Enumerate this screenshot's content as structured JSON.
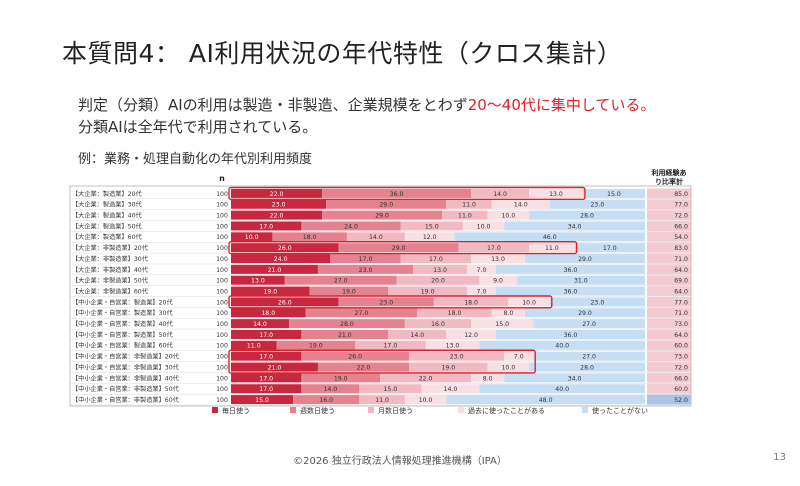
{
  "slide": {
    "title": "本質問4： AI利用状況の年代特性（クロス集計）",
    "subtitle_line1_a": "判定（分類）AIの利用は製造・非製造、企業規模をとわず",
    "subtitle_line1_b": "20〜40代に集中している。",
    "subtitle_line2": "分類AIは全年代で利用されている。",
    "example_label": "例：業務・処理自動化の年代別利用頻度",
    "footer": "©2026 独立行政法人情報処理推進機構（IPA）",
    "page_number": "13"
  },
  "colors": {
    "series": [
      "#c8283f",
      "#e5828f",
      "#f1bac2",
      "#f8dfe3",
      "#c5def4"
    ],
    "ratio_band": "#e9a1aa",
    "ratio_band_last": "#adc3e3",
    "highlight": "#e0202a"
  },
  "chart_data": {
    "type": "bar",
    "orientation": "horizontal",
    "stacked": "percent",
    "n_header": "n",
    "ratio_header": "利用経験あり比率計",
    "categories": [
      "【大企業：製造業】20代",
      "【大企業：製造業】30代",
      "【大企業：製造業】40代",
      "【大企業：製造業】50代",
      "【大企業：製造業】60代",
      "【大企業：非製造業】20代",
      "【大企業：非製造業】30代",
      "【大企業：非製造業】40代",
      "【大企業：非製造業】50代",
      "【大企業：非製造業】60代",
      "【中小企業・自営業：製造業】20代",
      "【中小企業・自営業：製造業】30代",
      "【中小企業・自営業：製造業】40代",
      "【中小企業・自営業：製造業】50代",
      "【中小企業・自営業：製造業】60代",
      "【中小企業・自営業：非製造業】20代",
      "【中小企業・自営業：非製造業】30代",
      "【中小企業・自営業：非製造業】40代",
      "【中小企業・自営業：非製造業】50代",
      "【中小企業・自営業：非製造業】60代"
    ],
    "n": [
      100,
      100,
      100,
      100,
      100,
      100,
      100,
      100,
      100,
      100,
      100,
      100,
      100,
      100,
      100,
      100,
      100,
      100,
      100,
      100
    ],
    "series": [
      {
        "name": "毎日使う",
        "values": [
          22.0,
          23.0,
          22.0,
          17.0,
          10.0,
          26.0,
          24.0,
          21.0,
          13.0,
          19.0,
          26.0,
          18.0,
          14.0,
          17.0,
          11.0,
          17.0,
          21.0,
          17.0,
          17.0,
          15.0
        ]
      },
      {
        "name": "週数日使う",
        "values": [
          36.0,
          29.0,
          29.0,
          24.0,
          18.0,
          29.0,
          17.0,
          23.0,
          27.0,
          19.0,
          23.0,
          27.0,
          28.0,
          21.0,
          19.0,
          26.0,
          22.0,
          19.0,
          14.0,
          16.0
        ]
      },
      {
        "name": "月数日使う",
        "values": [
          14.0,
          11.0,
          11.0,
          15.0,
          14.0,
          17.0,
          17.0,
          13.0,
          20.0,
          19.0,
          18.0,
          18.0,
          16.0,
          14.0,
          17.0,
          23.0,
          19.0,
          22.0,
          15.0,
          11.0
        ]
      },
      {
        "name": "過去に使ったことがある",
        "values": [
          13.0,
          14.0,
          10.0,
          10.0,
          12.0,
          11.0,
          13.0,
          7.0,
          9.0,
          7.0,
          10.0,
          8.0,
          15.0,
          12.0,
          13.0,
          7.0,
          10.0,
          8.0,
          14.0,
          10.0
        ]
      },
      {
        "name": "使ったことがない",
        "values": [
          15.0,
          23.0,
          28.0,
          34.0,
          46.0,
          17.0,
          29.0,
          36.0,
          31.0,
          36.0,
          23.0,
          29.0,
          27.0,
          36.0,
          40.0,
          27.0,
          28.0,
          34.0,
          40.0,
          48.0
        ]
      }
    ],
    "usage_ratio_total": [
      85.0,
      77.0,
      72.0,
      66.0,
      54.0,
      83.0,
      71.0,
      64.0,
      69.0,
      64.0,
      77.0,
      71.0,
      73.0,
      64.0,
      60.0,
      73.0,
      72.0,
      66.0,
      60.0,
      52.0
    ],
    "highlighted_rows": [
      [
        0,
        0
      ],
      [
        5,
        5
      ],
      [
        10,
        10
      ],
      [
        15,
        16
      ]
    ],
    "legend_position": "bottom",
    "grid": false
  }
}
